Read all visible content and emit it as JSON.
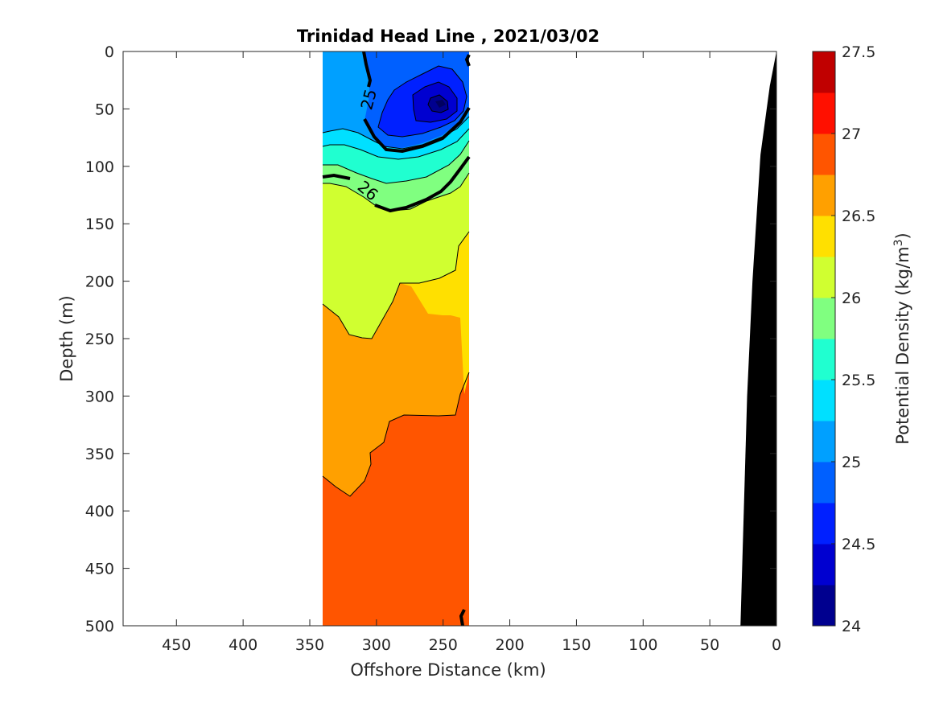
{
  "chart_data": {
    "type": "contour",
    "title": "Trinidad Head Line , 2021/03/02",
    "xlabel": "Offshore Distance (km)",
    "ylabel": "Depth (m)",
    "xlim": [
      490,
      0
    ],
    "ylim": [
      0,
      500
    ],
    "x_ticks": [
      450,
      400,
      350,
      300,
      250,
      200,
      150,
      100,
      50,
      0
    ],
    "y_ticks": [
      0,
      50,
      100,
      150,
      200,
      250,
      300,
      350,
      400,
      450,
      500
    ],
    "x_reversed": true,
    "y_reversed": true,
    "data_extent": {
      "x": [
        340,
        229
      ],
      "depth": [
        0,
        500
      ]
    },
    "contour_labels": [
      {
        "text": "25",
        "x": 305,
        "depth": 42,
        "rotation": -75
      },
      {
        "text": "26",
        "x": 307,
        "depth": 122,
        "rotation": 40
      }
    ],
    "bottom_profile": [
      [
        0,
        0
      ],
      [
        5,
        30
      ],
      [
        12,
        90
      ],
      [
        18,
        200
      ],
      [
        22,
        300
      ],
      [
        27,
        500
      ]
    ],
    "colorbar": {
      "label_prefix": "Potential Density (kg/m",
      "label_sup": "3",
      "label_suffix": ")",
      "min": 24,
      "max": 27.5,
      "ticks": [
        24,
        24.5,
        25,
        25.5,
        26,
        26.5,
        27,
        27.5
      ],
      "tick_labels": [
        "24",
        "24.5",
        "25",
        "25.5",
        "26",
        "26.5",
        "27",
        "27.5"
      ],
      "colors": [
        "#00008f",
        "#0000d0",
        "#0020ff",
        "#0060ff",
        "#00a0ff",
        "#00e0ff",
        "#20ffd0",
        "#80ff80",
        "#d0ff30",
        "#ffe000",
        "#ffa000",
        "#ff5500",
        "#ff1000",
        "#c00000"
      ]
    },
    "grid": false,
    "legend": "none"
  }
}
